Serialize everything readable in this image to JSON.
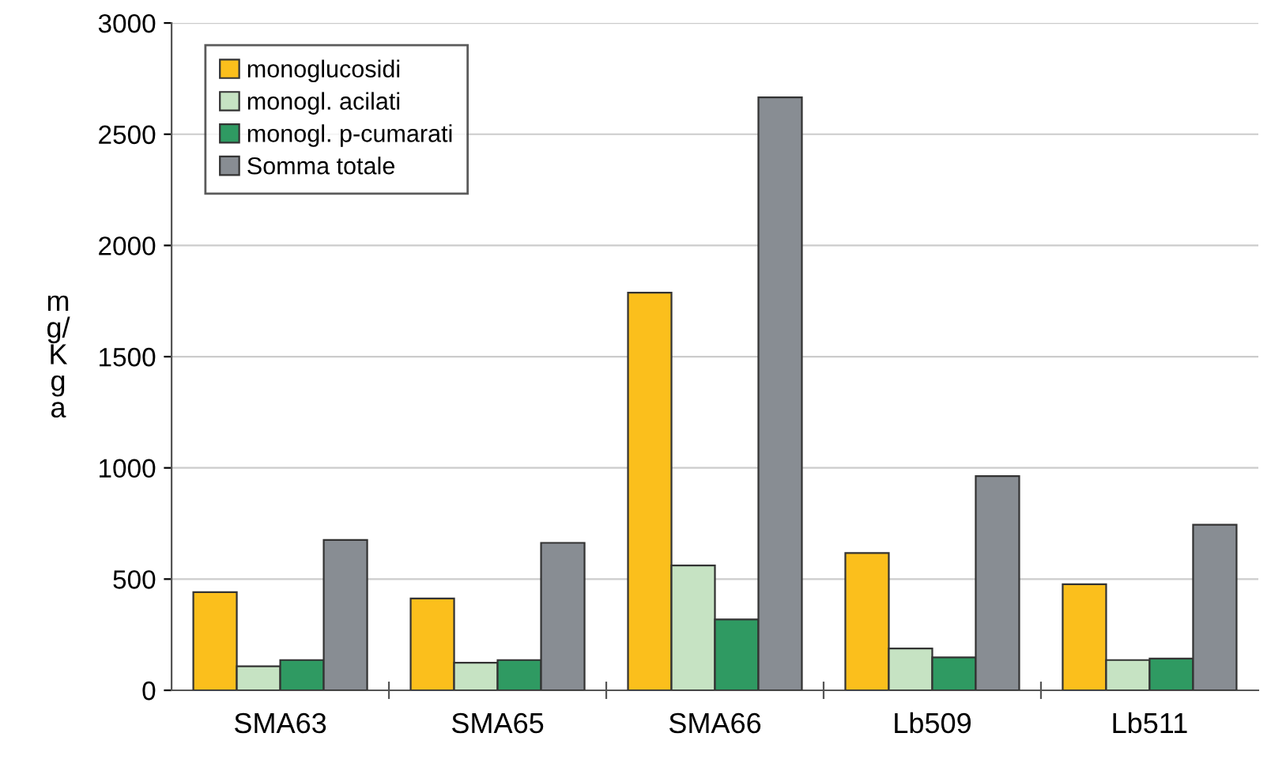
{
  "chart_data": {
    "type": "bar",
    "ylabel": "m\ng/\nK\ng\na",
    "categories": [
      "SMA63",
      "SMA65",
      "SMA66",
      "Lb509",
      "Lb511"
    ],
    "series": [
      {
        "name": "monoglucosidi",
        "color": "#fbbf1c",
        "values": [
          441,
          413,
          1788,
          617,
          477
        ]
      },
      {
        "name": "monogl. acilati",
        "color": "#c6e3c3",
        "values": [
          108,
          124,
          561,
          188,
          136
        ]
      },
      {
        "name": "monogl. p-cumarati",
        "color": "#2f9a62",
        "values": [
          136,
          136,
          319,
          148,
          143
        ]
      },
      {
        "name": "Somma totale",
        "color": "#888d93",
        "values": [
          676,
          663,
          2666,
          963,
          744
        ]
      }
    ],
    "ylim": [
      0,
      3000
    ],
    "yticks": [
      0,
      500,
      1000,
      1500,
      2000,
      2500,
      3000
    ],
    "grid": "y",
    "legend": "top left"
  }
}
